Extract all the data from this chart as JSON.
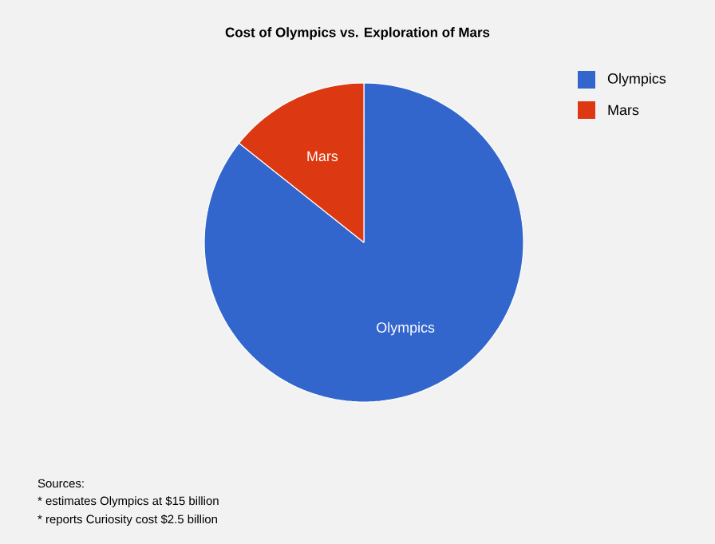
{
  "chart_data": {
    "type": "pie",
    "title": "Cost of Olympics vs. Exploration of Mars",
    "categories": [
      "Olympics",
      "Mars"
    ],
    "values": [
      85.7,
      14.3
    ],
    "colors": [
      "#3366cc",
      "#dc3912"
    ],
    "legend": "right",
    "annotations": [
      "Sources:",
      "* estimates Olympics at $15 billion",
      "* reports Curiosity cost $2.5 billion"
    ]
  }
}
